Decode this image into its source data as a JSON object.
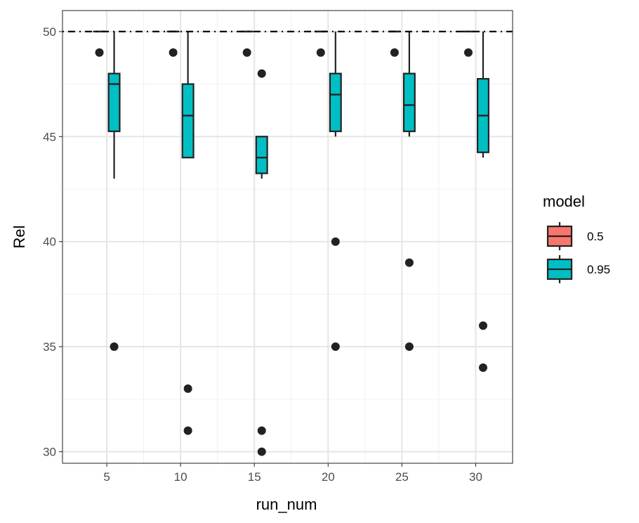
{
  "chart_data": {
    "type": "boxplot",
    "xlabel": "run_num",
    "ylabel": "Rel",
    "xlim": [
      2.0,
      32.5
    ],
    "ylim": [
      29.45,
      51.0
    ],
    "x_ticks": [
      5,
      10,
      15,
      20,
      25,
      30
    ],
    "y_ticks": [
      30,
      35,
      40,
      45,
      50
    ],
    "grid": true,
    "reference_line": {
      "y": 50,
      "style": "dotdash"
    },
    "legend": {
      "title": "model",
      "position": "right",
      "entries": [
        {
          "label": "0.5",
          "color": "#F8766D"
        },
        {
          "label": "0.95",
          "color": "#00BFC4"
        }
      ]
    },
    "series": [
      {
        "name": "0.5",
        "color": "#F8766D",
        "boxes": [
          {
            "x": 4.5,
            "min": 50,
            "q1": 50,
            "median": 50,
            "q3": 50,
            "max": 50,
            "outliers": [
              49
            ]
          },
          {
            "x": 9.5,
            "min": 50,
            "q1": 50,
            "median": 50,
            "q3": 50,
            "max": 50,
            "outliers": [
              49
            ]
          },
          {
            "x": 14.5,
            "min": 50,
            "q1": 50,
            "median": 50,
            "q3": 50,
            "max": 50,
            "outliers": [
              49
            ]
          },
          {
            "x": 19.5,
            "min": 50,
            "q1": 50,
            "median": 50,
            "q3": 50,
            "max": 50,
            "outliers": [
              49
            ]
          },
          {
            "x": 24.5,
            "min": 50,
            "q1": 50,
            "median": 50,
            "q3": 50,
            "max": 50,
            "outliers": [
              49
            ]
          },
          {
            "x": 29.5,
            "min": 50,
            "q1": 50,
            "median": 50,
            "q3": 50,
            "max": 50,
            "outliers": [
              49
            ]
          }
        ]
      },
      {
        "name": "0.95",
        "color": "#00BFC4",
        "boxes": [
          {
            "x": 5.5,
            "min": 43,
            "q1": 45.25,
            "median": 47.5,
            "q3": 48,
            "max": 50,
            "outliers": [
              35
            ]
          },
          {
            "x": 10.5,
            "min": 44,
            "q1": 44,
            "median": 46,
            "q3": 47.5,
            "max": 50,
            "outliers": [
              33,
              31
            ]
          },
          {
            "x": 15.5,
            "min": 43,
            "q1": 43.25,
            "median": 44,
            "q3": 45,
            "max": 45,
            "outliers": [
              48,
              31,
              30
            ]
          },
          {
            "x": 20.5,
            "min": 45,
            "q1": 45.25,
            "median": 47,
            "q3": 48,
            "max": 50,
            "outliers": [
              40,
              35
            ]
          },
          {
            "x": 25.5,
            "min": 45,
            "q1": 45.25,
            "median": 46.5,
            "q3": 48,
            "max": 50,
            "outliers": [
              39,
              35
            ]
          },
          {
            "x": 30.5,
            "min": 44,
            "q1": 44.25,
            "median": 46,
            "q3": 47.75,
            "max": 50,
            "outliers": [
              36,
              34
            ]
          }
        ]
      }
    ]
  }
}
